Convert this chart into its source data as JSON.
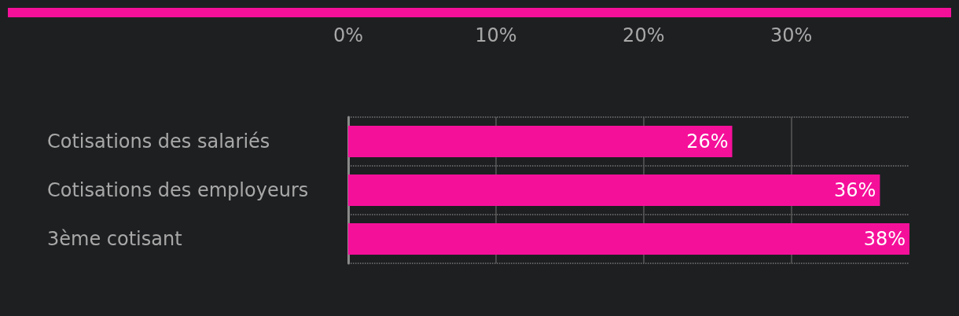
{
  "chart_data": {
    "type": "bar",
    "orientation": "horizontal",
    "categories": [
      "Cotisations des salariés",
      "Cotisations des employeurs",
      "3ème cotisant"
    ],
    "values": [
      26,
      36,
      38
    ],
    "value_labels": [
      "26%",
      "36%",
      "38%"
    ],
    "color": "#f5109a",
    "xlim": [
      0,
      38
    ],
    "xticks": [
      {
        "value": 0,
        "label": "0%"
      },
      {
        "value": 10,
        "label": "10%"
      },
      {
        "value": 20,
        "label": "20%"
      },
      {
        "value": 30,
        "label": "30%"
      }
    ],
    "grid": true
  }
}
